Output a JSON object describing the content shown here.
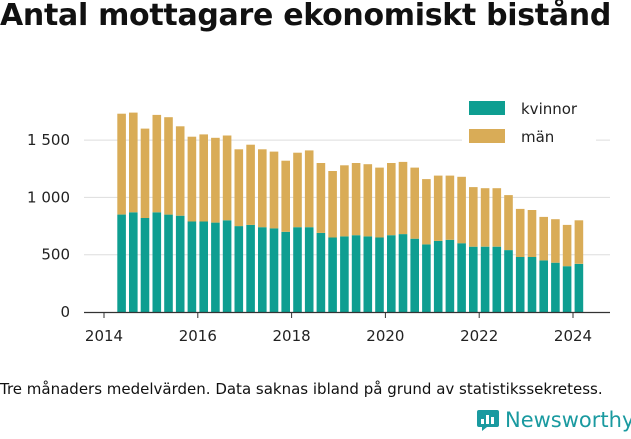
{
  "title": "Antal mottagare ekonomiskt bistånd",
  "caption": "Tre månaders medelvärden. Data saknas ibland på grund av statistikssekretess.",
  "brand": {
    "name": "Newsworthy",
    "icon": "bar-chart-logo-icon",
    "color": "#1a9aa0"
  },
  "chart_data": {
    "type": "bar",
    "stacked": true,
    "x_ticks": [
      "2014",
      "2016",
      "2018",
      "2020",
      "2022",
      "2024"
    ],
    "y_ticks": [
      "0",
      "500",
      "1 000",
      "1 500"
    ],
    "ylim": [
      0,
      1900
    ],
    "grid": true,
    "legend_position": "top-right",
    "categories": [
      "2014-Q2",
      "2014-Q3",
      "2014-Q4",
      "2015-Q1",
      "2015-Q2",
      "2015-Q3",
      "2015-Q4",
      "2016-Q1",
      "2016-Q2",
      "2016-Q3",
      "2016-Q4",
      "2017-Q1",
      "2017-Q2",
      "2017-Q3",
      "2017-Q4",
      "2018-Q1",
      "2018-Q2",
      "2018-Q3",
      "2018-Q4",
      "2019-Q1",
      "2019-Q2",
      "2019-Q3",
      "2019-Q4",
      "2020-Q1",
      "2020-Q2",
      "2020-Q3",
      "2020-Q4",
      "2021-Q1",
      "2021-Q2",
      "2021-Q3",
      "2021-Q4",
      "2022-Q1",
      "2022-Q2",
      "2022-Q3",
      "2022-Q4",
      "2023-Q1",
      "2023-Q2",
      "2023-Q3",
      "2023-Q4",
      "2024-Q1"
    ],
    "series": [
      {
        "name": "kvinnor",
        "color": "#0e9e91",
        "values": [
          850,
          870,
          820,
          870,
          850,
          840,
          790,
          790,
          780,
          800,
          750,
          760,
          740,
          730,
          700,
          740,
          740,
          690,
          650,
          660,
          670,
          660,
          650,
          670,
          680,
          640,
          590,
          620,
          630,
          600,
          570,
          570,
          570,
          540,
          480,
          480,
          450,
          430,
          400,
          420
        ]
      },
      {
        "name": "män",
        "color": "#d9ac57",
        "values": [
          880,
          870,
          780,
          850,
          850,
          780,
          740,
          760,
          740,
          740,
          670,
          700,
          680,
          670,
          620,
          650,
          670,
          610,
          580,
          620,
          630,
          630,
          610,
          630,
          630,
          620,
          570,
          570,
          560,
          580,
          520,
          510,
          510,
          480,
          420,
          410,
          380,
          380,
          360,
          380
        ]
      }
    ]
  }
}
